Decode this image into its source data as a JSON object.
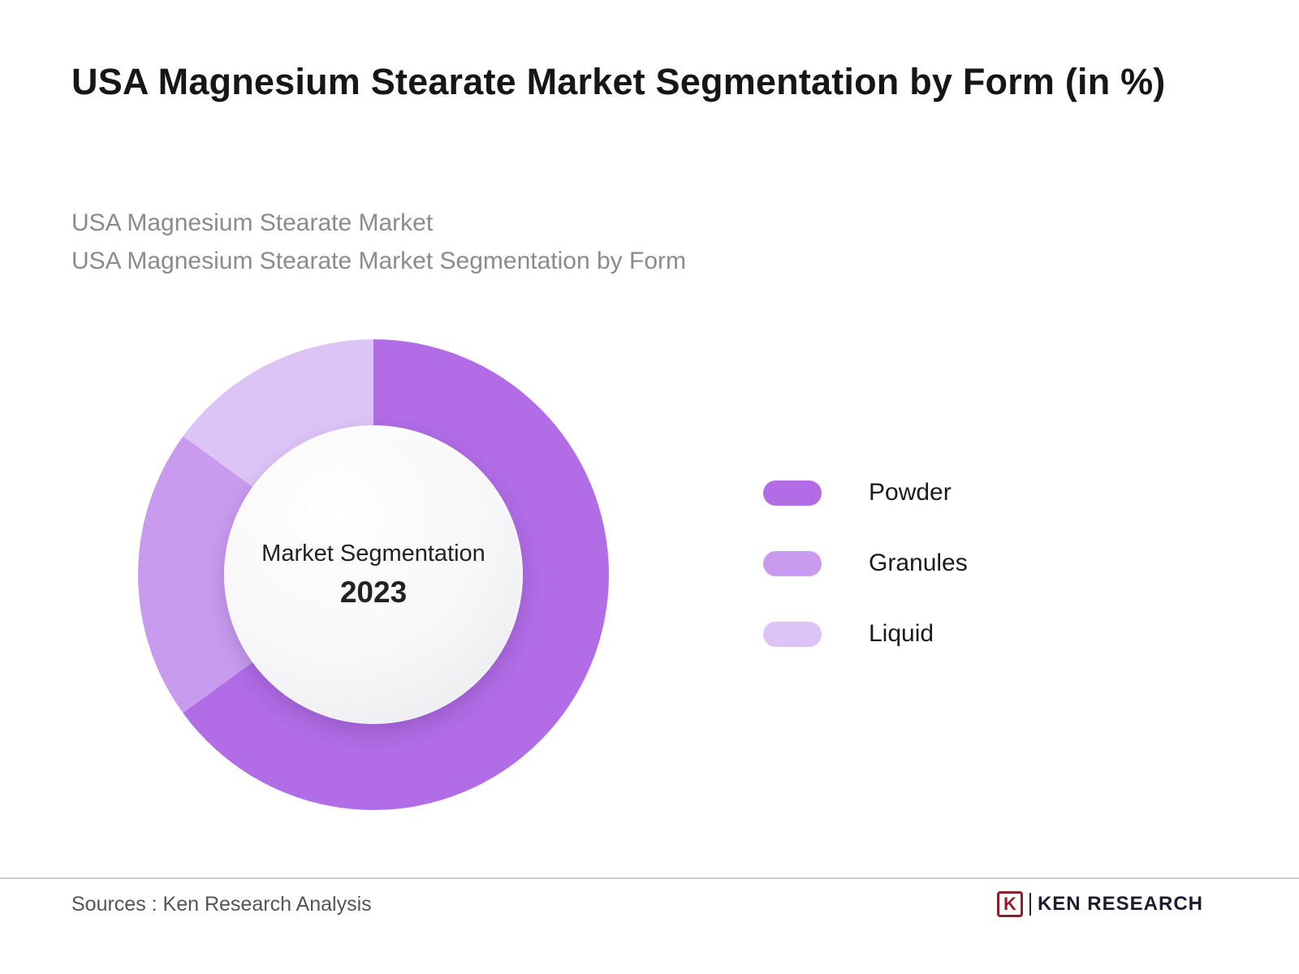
{
  "header": {
    "title": "USA Magnesium Stearate Market Segmentation by Form (in %)",
    "subtitle_line1": "USA Magnesium Stearate Market",
    "subtitle_line2": "USA Magnesium Stearate Market Segmentation by Form"
  },
  "chart_data": {
    "type": "pie",
    "donut": true,
    "title": "USA Magnesium Stearate Market Segmentation by Form (in %)",
    "center_label": "Market Segmentation",
    "center_year": "2023",
    "categories": [
      "Powder",
      "Granules",
      "Liquid"
    ],
    "values": [
      65,
      20,
      15
    ],
    "unit": "%",
    "colors": [
      "#b16ce6",
      "#c89bee",
      "#ddc4f6"
    ],
    "start_angle_deg": 0,
    "legend_position": "right"
  },
  "footer": {
    "sources": "Sources : Ken Research Analysis",
    "brand_initial": "K",
    "brand_name": "KEN RESEARCH"
  }
}
